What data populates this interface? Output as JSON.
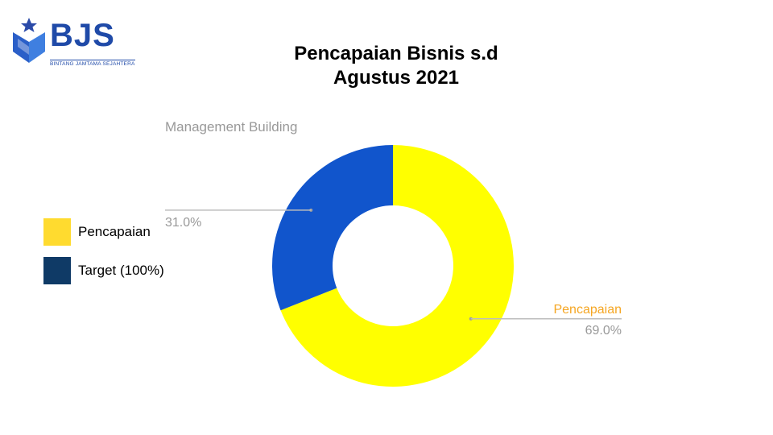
{
  "logo": {
    "text": "BJS",
    "tagline": "BINTANG JAMTAMA SEJAHTERA",
    "brand_color": "#1f4aa8"
  },
  "title_line1": "Pencapaian Bisnis s.d",
  "title_line2": "Agustus 2021",
  "legend": [
    {
      "label": "Pencapaian",
      "color": "#ffdb2f"
    },
    {
      "label": "Target (100%)",
      "color": "#0f3a66"
    }
  ],
  "chart_data": {
    "type": "pie",
    "subtype": "donut",
    "slices": [
      {
        "label": "Pencapaian",
        "value": 69.0,
        "value_label": "69.0%",
        "color": "#ffff00",
        "label_color": "#f5a623"
      },
      {
        "label": "Management Building",
        "value": 31.0,
        "value_label": "31.0%",
        "color": "#1155cc",
        "label_color": "#999999"
      }
    ]
  }
}
